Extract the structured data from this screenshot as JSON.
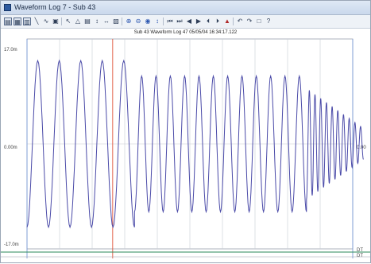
{
  "window": {
    "title": "Waveform Log 7 - Sub 43",
    "icon": "app-icon"
  },
  "toolbar": {
    "buttons": [
      {
        "name": "open-icon",
        "glyph": "▤"
      },
      {
        "name": "grid-icon",
        "glyph": "▦"
      },
      {
        "name": "export-icon",
        "glyph": "▥"
      },
      {
        "name": "line-chart-icon",
        "glyph": "╲"
      },
      {
        "name": "wave-icon",
        "glyph": "∿"
      },
      {
        "name": "print-icon",
        "glyph": "▣"
      },
      {
        "name": "cursor-icon",
        "glyph": "↖"
      },
      {
        "name": "measure-icon",
        "glyph": "△"
      },
      {
        "name": "table-icon",
        "glyph": "▤"
      },
      {
        "name": "marker-icon",
        "glyph": "↕"
      },
      {
        "name": "pan-icon",
        "glyph": "↔"
      },
      {
        "name": "report-icon",
        "glyph": "▧"
      },
      {
        "name": "zoom-in-icon",
        "glyph": "⊕"
      },
      {
        "name": "zoom-out-icon",
        "glyph": "⊖"
      },
      {
        "name": "zoom-fit-icon",
        "glyph": "◉"
      },
      {
        "name": "scale-icon",
        "glyph": "↕"
      },
      {
        "name": "first-icon",
        "glyph": "⏮"
      },
      {
        "name": "last-icon",
        "glyph": "⏭"
      },
      {
        "name": "previous-icon",
        "glyph": "◀"
      },
      {
        "name": "next-icon",
        "glyph": "▶"
      },
      {
        "name": "step-back-icon",
        "glyph": "⏴"
      },
      {
        "name": "step-forward-icon",
        "glyph": "⏵"
      },
      {
        "name": "overlay-icon",
        "glyph": "▲"
      },
      {
        "name": "undo-icon",
        "glyph": "↶"
      },
      {
        "name": "redo-icon",
        "glyph": "↷"
      },
      {
        "name": "window-icon",
        "glyph": "□"
      },
      {
        "name": "help-icon",
        "glyph": "?"
      }
    ]
  },
  "plot": {
    "header": "Sub 43  Waveform Log 47  05/05/04  16:34:17.122",
    "y_top_label": "17.0m",
    "y_mid_label": "0.00m",
    "y_bottom_label": "-17.0m",
    "right_top_label": "0.00",
    "right_bottom_labels": [
      "DT",
      "DT"
    ],
    "colors": {
      "waveform": "#4a4aa8",
      "grid": "#c8ccd6",
      "cursor_red": "#e0543a",
      "cursor_blue": "#7a9ad6",
      "baseline_green": "#2a8a5a"
    }
  },
  "chart_data": {
    "type": "line",
    "title": "Sub 43  Waveform Log 47  05/05/04  16:34:17.122",
    "xlabel": "",
    "ylabel": "",
    "ylim": [
      -17.0,
      17.0
    ],
    "y_ticks": [
      "17.0m",
      "0.00m",
      "-17.0m"
    ],
    "grid": true,
    "series": [
      {
        "name": "",
        "segments": [
          {
            "cycles": 5,
            "amplitude": 13.5,
            "period_fraction": 0.066
          },
          {
            "cycles": 12,
            "amplitude": 11.0,
            "period_fraction": 0.044
          },
          {
            "cycles": 10,
            "amplitude_start": 9.0,
            "amplitude_end": 2.5,
            "period_fraction": 0.0175
          }
        ]
      }
    ],
    "cursors": [
      {
        "color": "red",
        "x_fraction": 0.263
      },
      {
        "color": "blue",
        "x_fraction": 0.0
      },
      {
        "color": "blue",
        "x_fraction": 1.0
      }
    ]
  }
}
